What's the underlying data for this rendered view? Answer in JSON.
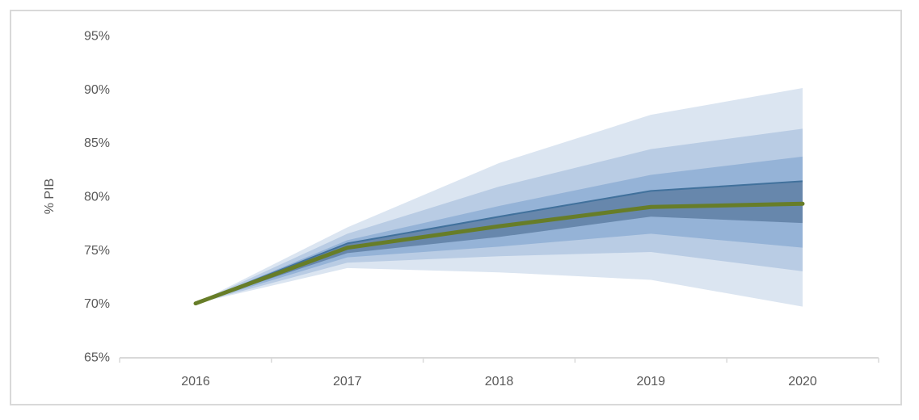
{
  "figure": {
    "background": "#ffffff",
    "border_color": "#d9d9d9"
  },
  "chart_data": {
    "type": "area",
    "subtype": "fan-chart",
    "title": "",
    "xlabel": "",
    "ylabel": "% PIB",
    "x": [
      2016,
      2017,
      2018,
      2019,
      2020
    ],
    "x_tick_labels": [
      "2016",
      "2017",
      "2018",
      "2019",
      "2020"
    ],
    "y_ticks": [
      65,
      70,
      75,
      80,
      85,
      90,
      95
    ],
    "y_tick_labels": [
      "65%",
      "70%",
      "75%",
      "80%",
      "85%",
      "90%",
      "95%"
    ],
    "ylim": [
      65,
      95
    ],
    "grid": false,
    "legend_position": "none",
    "axis_color": "#d9d9d9",
    "tick_label_color": "#595959",
    "series": [
      {
        "name": "central-projection",
        "type": "line",
        "color": "#677d28",
        "values": [
          70.0,
          75.2,
          77.2,
          79.0,
          79.3
        ]
      }
    ],
    "bands": [
      {
        "name": "confidence-band-outer",
        "color": "#dbe5f1",
        "upper": [
          70.0,
          77.1,
          83.1,
          87.6,
          90.1
        ],
        "lower": [
          70.0,
          73.3,
          72.9,
          72.2,
          69.7
        ]
      },
      {
        "name": "confidence-band-wide",
        "color": "#b9cce4",
        "upper": [
          70.0,
          76.5,
          80.9,
          84.4,
          86.3
        ],
        "lower": [
          70.0,
          73.8,
          74.4,
          74.8,
          73.0
        ]
      },
      {
        "name": "confidence-band-mid",
        "color": "#95b3d7",
        "upper": [
          70.0,
          75.9,
          79.1,
          82.0,
          83.7
        ],
        "lower": [
          70.0,
          74.3,
          75.3,
          76.5,
          75.2
        ]
      },
      {
        "name": "confidence-band-inner",
        "color": "#6787ac",
        "upper_edge_color": "#41719c",
        "upper": [
          70.0,
          75.6,
          78.1,
          80.5,
          81.4
        ],
        "lower": [
          70.0,
          74.7,
          76.2,
          78.1,
          77.5
        ]
      }
    ]
  }
}
